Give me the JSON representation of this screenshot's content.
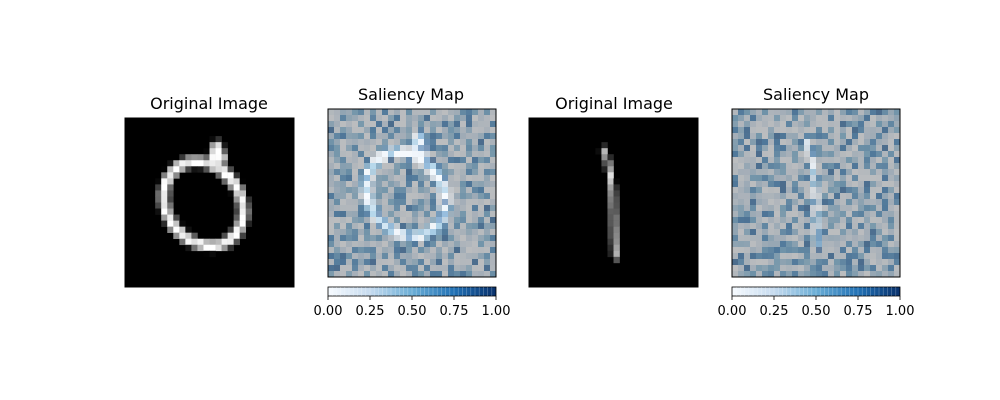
{
  "chart_data": [
    {
      "type": "heatmap",
      "title": "Original Image",
      "subject": "handwritten digit 0",
      "grid": [
        28,
        28
      ],
      "colormap": "gray",
      "colorbar": false
    },
    {
      "type": "heatmap",
      "title": "Saliency Map",
      "subject": "saliency overlay for digit 0",
      "grid": [
        28,
        28
      ],
      "colormap": "Blues",
      "colorbar": {
        "range": [
          0,
          1
        ],
        "ticks": [
          "0.00",
          "0.25",
          "0.50",
          "0.75",
          "1.00"
        ],
        "placement": "bottom"
      }
    },
    {
      "type": "heatmap",
      "title": "Original Image",
      "subject": "handwritten digit 1",
      "grid": [
        28,
        28
      ],
      "colormap": "gray",
      "colorbar": false
    },
    {
      "type": "heatmap",
      "title": "Saliency Map",
      "subject": "saliency overlay for digit 1",
      "grid": [
        28,
        28
      ],
      "colormap": "Blues",
      "colorbar": {
        "range": [
          0,
          1
        ],
        "ticks": [
          "0.00",
          "0.25",
          "0.50",
          "0.75",
          "1.00"
        ],
        "placement": "bottom"
      }
    }
  ]
}
